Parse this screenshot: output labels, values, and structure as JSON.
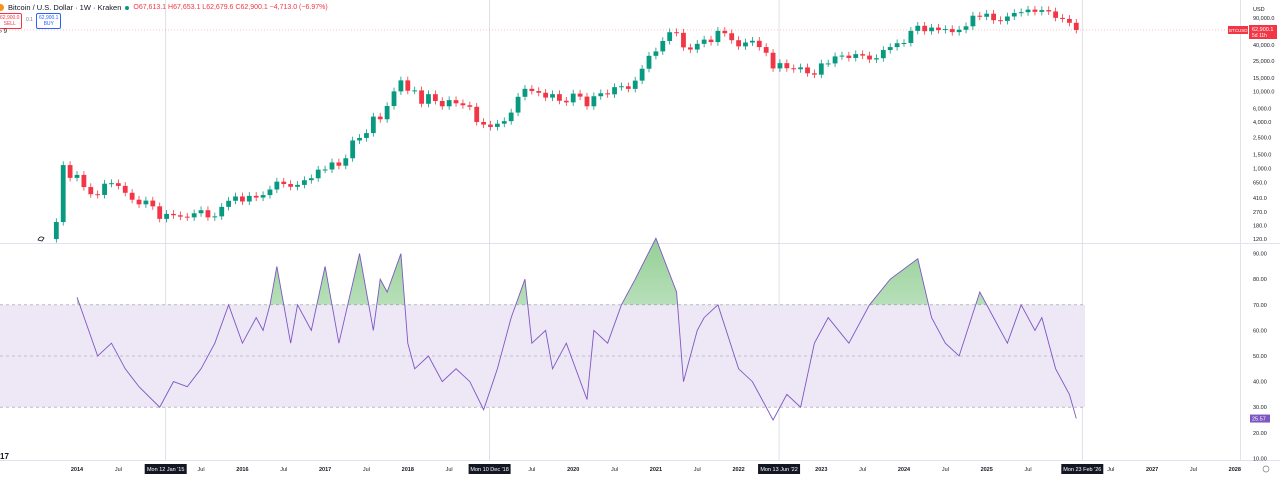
{
  "header": {
    "symbol": "Bitcoin / U.S. Dollar · 1W · Kraken",
    "open": "O67,613.1",
    "high": "H67,653.1",
    "low": "L62,679.6",
    "close": "C62,900.1",
    "change": "−4,713.0 (−6.97%)",
    "sell_price": "62,900.0",
    "sell_label": "SELL",
    "spread": "0.1",
    "buy_price": "62,900.1",
    "buy_label": "BUY",
    "indicator_row": "› 9",
    "logo_text": "17"
  },
  "colors": {
    "up": "#089981",
    "down": "#f23645",
    "rsi": "#7e57c2",
    "rsi_band": "#ede7f6",
    "overbought_fill": "#4caf50"
  },
  "price_axis": {
    "currency": "USD",
    "ticks": [
      "90,000.0",
      "40,000.0",
      "25,000.0",
      "15,000.0",
      "10,000.0",
      "6,000.0",
      "4,000.0",
      "2,500.0",
      "1,500.0",
      "1,000.0",
      "650.0",
      "410.0",
      "270.0",
      "180.0",
      "120.0"
    ],
    "last_price_symbol": "BTCUSD",
    "last_price": "62,900.1",
    "countdown": "5d 11h"
  },
  "rsi_axis": {
    "ticks": [
      "90.00",
      "80.00",
      "70.00",
      "60.00",
      "50.00",
      "40.00",
      "30.00",
      "20.00",
      "10.00"
    ],
    "last_value": "25.57"
  },
  "time_axis": {
    "ticks": [
      {
        "l": "2014",
        "t": 2014
      },
      {
        "l": "Jul",
        "t": 2014.5
      },
      {
        "l": "Jul",
        "t": 2015.5
      },
      {
        "l": "2016",
        "t": 2016
      },
      {
        "l": "Jul",
        "t": 2016.5
      },
      {
        "l": "2017",
        "t": 2017
      },
      {
        "l": "Jul",
        "t": 2017.5
      },
      {
        "l": "2018",
        "t": 2018
      },
      {
        "l": "Jul",
        "t": 2018.5
      },
      {
        "l": "Jul",
        "t": 2019.5
      },
      {
        "l": "2020",
        "t": 2020
      },
      {
        "l": "Jul",
        "t": 2020.5
      },
      {
        "l": "2021",
        "t": 2021
      },
      {
        "l": "Jul",
        "t": 2021.5
      },
      {
        "l": "2022",
        "t": 2022
      },
      {
        "l": "2023",
        "t": 2023
      },
      {
        "l": "Jul",
        "t": 2023.5
      },
      {
        "l": "2024",
        "t": 2024
      },
      {
        "l": "Jul",
        "t": 2024.5
      },
      {
        "l": "2025",
        "t": 2025
      },
      {
        "l": "Jul",
        "t": 2025.5
      },
      {
        "l": "Jul",
        "t": 2026.5
      },
      {
        "l": "2027",
        "t": 2027
      },
      {
        "l": "Jul",
        "t": 2027.5
      },
      {
        "l": "2028",
        "t": 2028
      }
    ],
    "markers": [
      {
        "l": "Mon 12 Jan '15",
        "d": "2015-01"
      },
      {
        "l": "Mon 10 Dec '18",
        "d": "2018-12"
      },
      {
        "l": "Mon 13 Jun '22",
        "d": "2022-06"
      },
      {
        "l": "Mon 23 Feb '26",
        "d": "2026-02"
      }
    ]
  },
  "chart_data": [
    {
      "type": "candlestick",
      "scale": "log",
      "ylim": [
        100,
        130000
      ],
      "approximate_monthly_closes": {
        "start": "2013-10",
        "first_open": 120,
        "closes": [
          200,
          1100,
          750,
          820,
          570,
          460,
          450,
          630,
          640,
          590,
          480,
          390,
          340,
          380,
          320,
          220,
          255,
          245,
          235,
          230,
          260,
          285,
          230,
          237,
          315,
          378,
          430,
          370,
          438,
          416,
          448,
          530,
          670,
          624,
          575,
          608,
          700,
          742,
          960,
          965,
          1190,
          1080,
          1350,
          2300,
          2480,
          2870,
          4700,
          4340,
          6450,
          10000,
          13900,
          10200,
          10300,
          6900,
          9200,
          7500,
          6400,
          7700,
          7000,
          6600,
          6300,
          4000,
          3700,
          3450,
          3800,
          4100,
          5300,
          8500,
          10800,
          10100,
          9600,
          8300,
          9200,
          7550,
          7200,
          9350,
          8550,
          6400,
          8650,
          9450,
          9150,
          11350,
          11650,
          10780,
          13800,
          19700,
          29000,
          33100,
          45200,
          58800,
          57700,
          37300,
          35000,
          41500,
          47100,
          43800,
          61300,
          57000,
          46300,
          38500,
          43200,
          45500,
          37700,
          31800,
          19900,
          23300,
          20000,
          19400,
          20500,
          17200,
          16500,
          23100,
          23100,
          28500,
          29200,
          27200,
          30500,
          29200,
          26000,
          27000,
          34500,
          37700,
          42300,
          42600,
          61200,
          71300,
          60600,
          67500,
          62700,
          64600,
          59000,
          63300,
          70200,
          96400,
          93400,
          102400,
          84300,
          82500,
          94200,
          104600,
          107100,
          115700,
          108200,
          114000,
          109500,
          90400,
          87500,
          78000,
          62900
        ]
      }
    },
    {
      "type": "line",
      "name": "RSI",
      "ylim": [
        5,
        100
      ],
      "bands": {
        "upper": 70,
        "middle": 50,
        "lower": 30
      },
      "points": [
        [
          "2014-01",
          73
        ],
        [
          "2014-04",
          50
        ],
        [
          "2014-06",
          55
        ],
        [
          "2014-08",
          45
        ],
        [
          "2014-10",
          38
        ],
        [
          "2015-01",
          30
        ],
        [
          "2015-03",
          40
        ],
        [
          "2015-05",
          38
        ],
        [
          "2015-07",
          45
        ],
        [
          "2015-09",
          55
        ],
        [
          "2015-11",
          70
        ],
        [
          "2016-01",
          55
        ],
        [
          "2016-03",
          65
        ],
        [
          "2016-04",
          60
        ],
        [
          "2016-05",
          70
        ],
        [
          "2016-06",
          85
        ],
        [
          "2016-08",
          55
        ],
        [
          "2016-09",
          70
        ],
        [
          "2016-11",
          60
        ],
        [
          "2017-01",
          85
        ],
        [
          "2017-03",
          55
        ],
        [
          "2017-06",
          90
        ],
        [
          "2017-08",
          60
        ],
        [
          "2017-09",
          80
        ],
        [
          "2017-10",
          75
        ],
        [
          "2017-12",
          90
        ],
        [
          "2018-01",
          55
        ],
        [
          "2018-02",
          45
        ],
        [
          "2018-04",
          50
        ],
        [
          "2018-06",
          40
        ],
        [
          "2018-08",
          45
        ],
        [
          "2018-10",
          40
        ],
        [
          "2018-12",
          29
        ],
        [
          "2019-02",
          45
        ],
        [
          "2019-04",
          65
        ],
        [
          "2019-06",
          80
        ],
        [
          "2019-07",
          55
        ],
        [
          "2019-09",
          60
        ],
        [
          "2019-10",
          45
        ],
        [
          "2019-12",
          55
        ],
        [
          "2020-03",
          33
        ],
        [
          "2020-04",
          60
        ],
        [
          "2020-06",
          55
        ],
        [
          "2020-08",
          70
        ],
        [
          "2020-10",
          80
        ],
        [
          "2021-01",
          96
        ],
        [
          "2021-04",
          75
        ],
        [
          "2021-05",
          40
        ],
        [
          "2021-07",
          60
        ],
        [
          "2021-08",
          65
        ],
        [
          "2021-10",
          70
        ],
        [
          "2022-01",
          45
        ],
        [
          "2022-03",
          40
        ],
        [
          "2022-04",
          35
        ],
        [
          "2022-06",
          25
        ],
        [
          "2022-08",
          35
        ],
        [
          "2022-10",
          30
        ],
        [
          "2022-12",
          55
        ],
        [
          "2023-02",
          65
        ],
        [
          "2023-05",
          55
        ],
        [
          "2023-08",
          70
        ],
        [
          "2023-11",
          80
        ],
        [
          "2024-03",
          88
        ],
        [
          "2024-05",
          65
        ],
        [
          "2024-07",
          55
        ],
        [
          "2024-09",
          50
        ],
        [
          "2024-12",
          75
        ],
        [
          "2025-02",
          65
        ],
        [
          "2025-04",
          55
        ],
        [
          "2025-06",
          70
        ],
        [
          "2025-08",
          60
        ],
        [
          "2025-09",
          65
        ],
        [
          "2025-11",
          45
        ],
        [
          "2026-01",
          35
        ],
        [
          "2026-02",
          25.57
        ]
      ]
    }
  ]
}
